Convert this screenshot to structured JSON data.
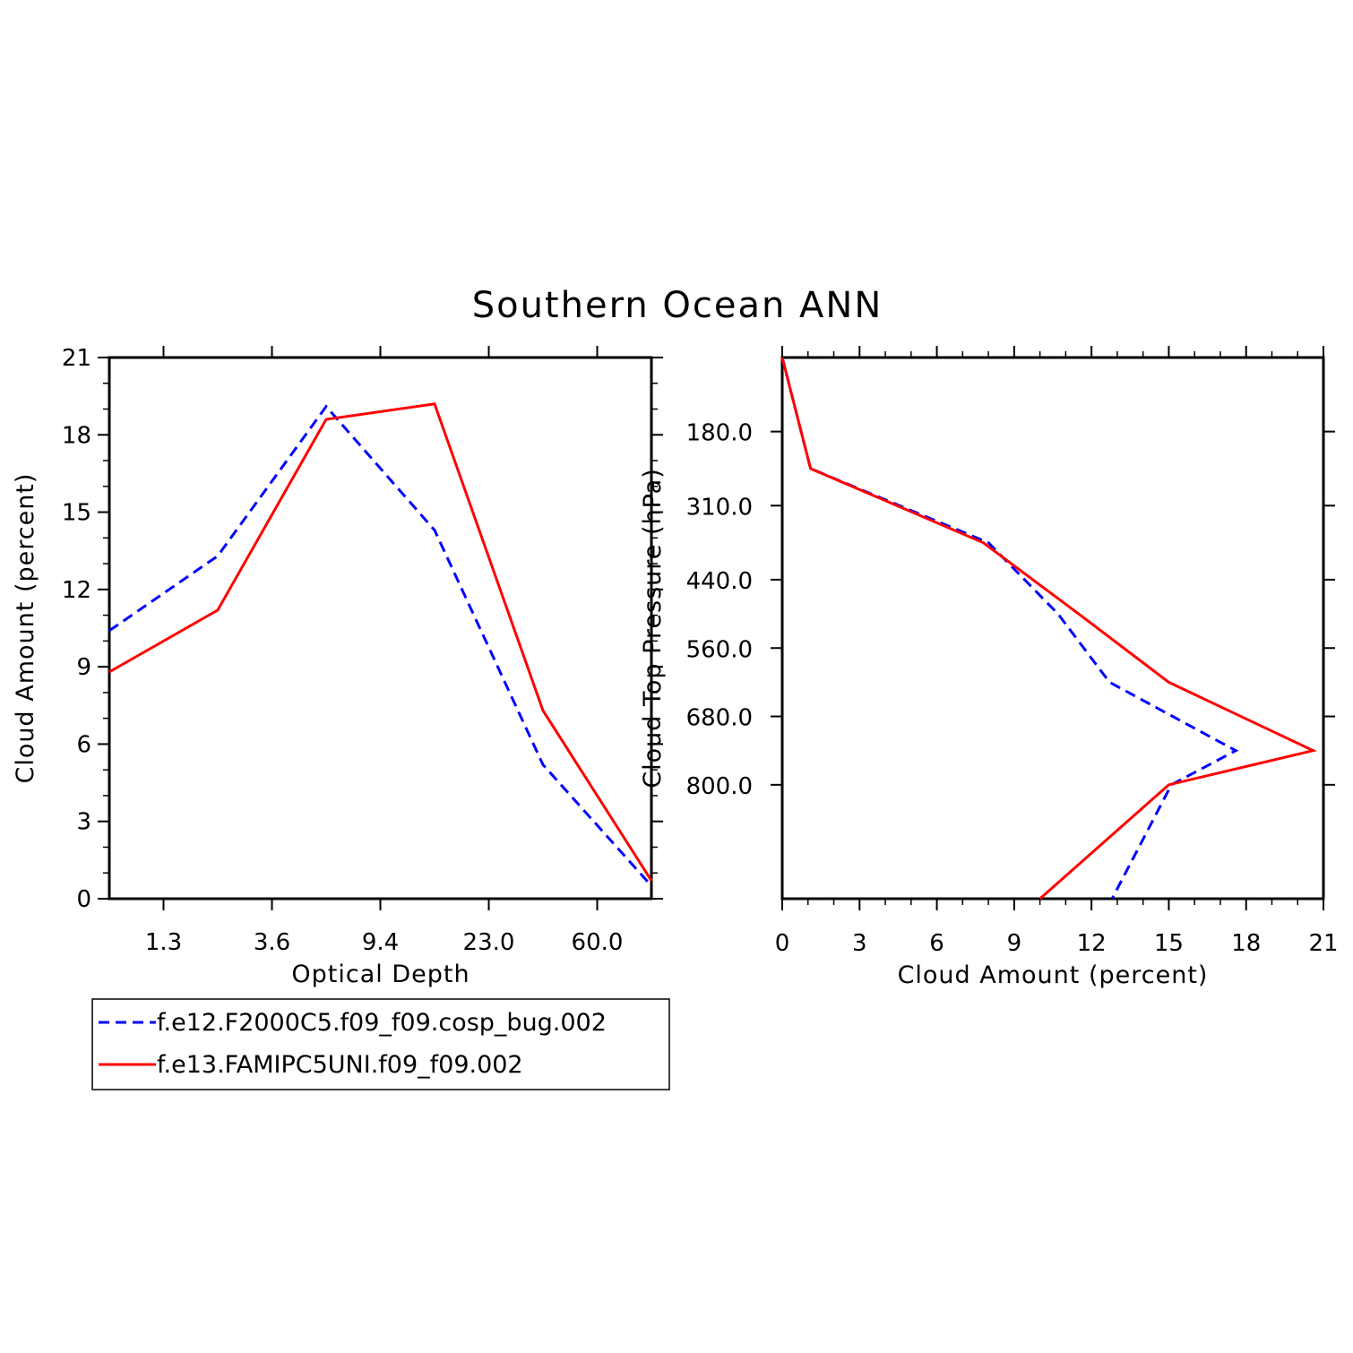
{
  "title": "Southern Ocean ANN",
  "legend": {
    "position": "below-left",
    "entries": [
      {
        "label": "f.e12.F2000C5.f09_f09.cosp_bug.002",
        "color": "#0000ff",
        "dash": "dashed"
      },
      {
        "label": "f.e13.FAMIPC5UNI.f09_f09.002",
        "color": "#ff0000",
        "dash": "solid"
      }
    ]
  },
  "chart_data": [
    {
      "type": "line",
      "xlabel": "Optical Depth",
      "ylabel": "Cloud Amount (percent)",
      "x_tick_labels": [
        "1.3",
        "3.6",
        "9.4",
        "23.0",
        "60.0"
      ],
      "x": [
        0.3,
        1.3,
        2.3,
        3.6,
        6.0,
        9.4,
        15.0,
        23.0,
        41.0,
        60.0,
        100.0
      ],
      "ylim": [
        0,
        21
      ],
      "y_ticks": [
        0,
        3,
        6,
        9,
        12,
        15,
        18,
        21
      ],
      "series": [
        {
          "name": "f.e12.F2000C5.f09_f09.cosp_bug.002",
          "color": "#0000ff",
          "style": "dashed",
          "points": [
            [
              0.3,
              10.4
            ],
            [
              2.3,
              13.3
            ],
            [
              6.0,
              19.1
            ],
            [
              15.0,
              14.3
            ],
            [
              41.0,
              5.2
            ],
            [
              100.0,
              0.5
            ]
          ]
        },
        {
          "name": "f.e13.FAMIPC5UNI.f09_f09.002",
          "color": "#ff0000",
          "style": "solid",
          "points": [
            [
              0.3,
              8.8
            ],
            [
              2.3,
              11.2
            ],
            [
              6.0,
              18.6
            ],
            [
              15.0,
              19.2
            ],
            [
              41.0,
              7.3
            ],
            [
              100.0,
              0.7
            ]
          ]
        }
      ]
    },
    {
      "type": "line",
      "xlabel": "Cloud Amount (percent)",
      "ylabel": "Cloud Top Pressure (hPa)",
      "xlim": [
        0,
        21
      ],
      "x_ticks": [
        0,
        3,
        6,
        9,
        12,
        15,
        18,
        21
      ],
      "y_tick_labels": [
        "180.0",
        "310.0",
        "440.0",
        "560.0",
        "680.0",
        "800.0"
      ],
      "y_ticks": [
        180,
        310,
        440,
        560,
        680,
        800
      ],
      "ylim": [
        50,
        1000
      ],
      "y_inverted": true,
      "series": [
        {
          "name": "f.e12.F2000C5.f09_f09.cosp_bug.002",
          "color": "#0000ff",
          "style": "dashed",
          "points": [
            [
              0.0,
              50
            ],
            [
              1.1,
              245
            ],
            [
              8.0,
              375
            ],
            [
              10.7,
              500
            ],
            [
              12.7,
              620
            ],
            [
              17.6,
              740
            ],
            [
              15.1,
              800
            ],
            [
              12.8,
              1000
            ]
          ]
        },
        {
          "name": "f.e13.FAMIPC5UNI.f09_f09.002",
          "color": "#ff0000",
          "style": "solid",
          "points": [
            [
              0.0,
              50
            ],
            [
              1.1,
              245
            ],
            [
              7.8,
              375
            ],
            [
              11.5,
              500
            ],
            [
              15.0,
              620
            ],
            [
              20.6,
              740
            ],
            [
              15.0,
              800
            ],
            [
              10.0,
              1000
            ]
          ]
        }
      ]
    }
  ]
}
